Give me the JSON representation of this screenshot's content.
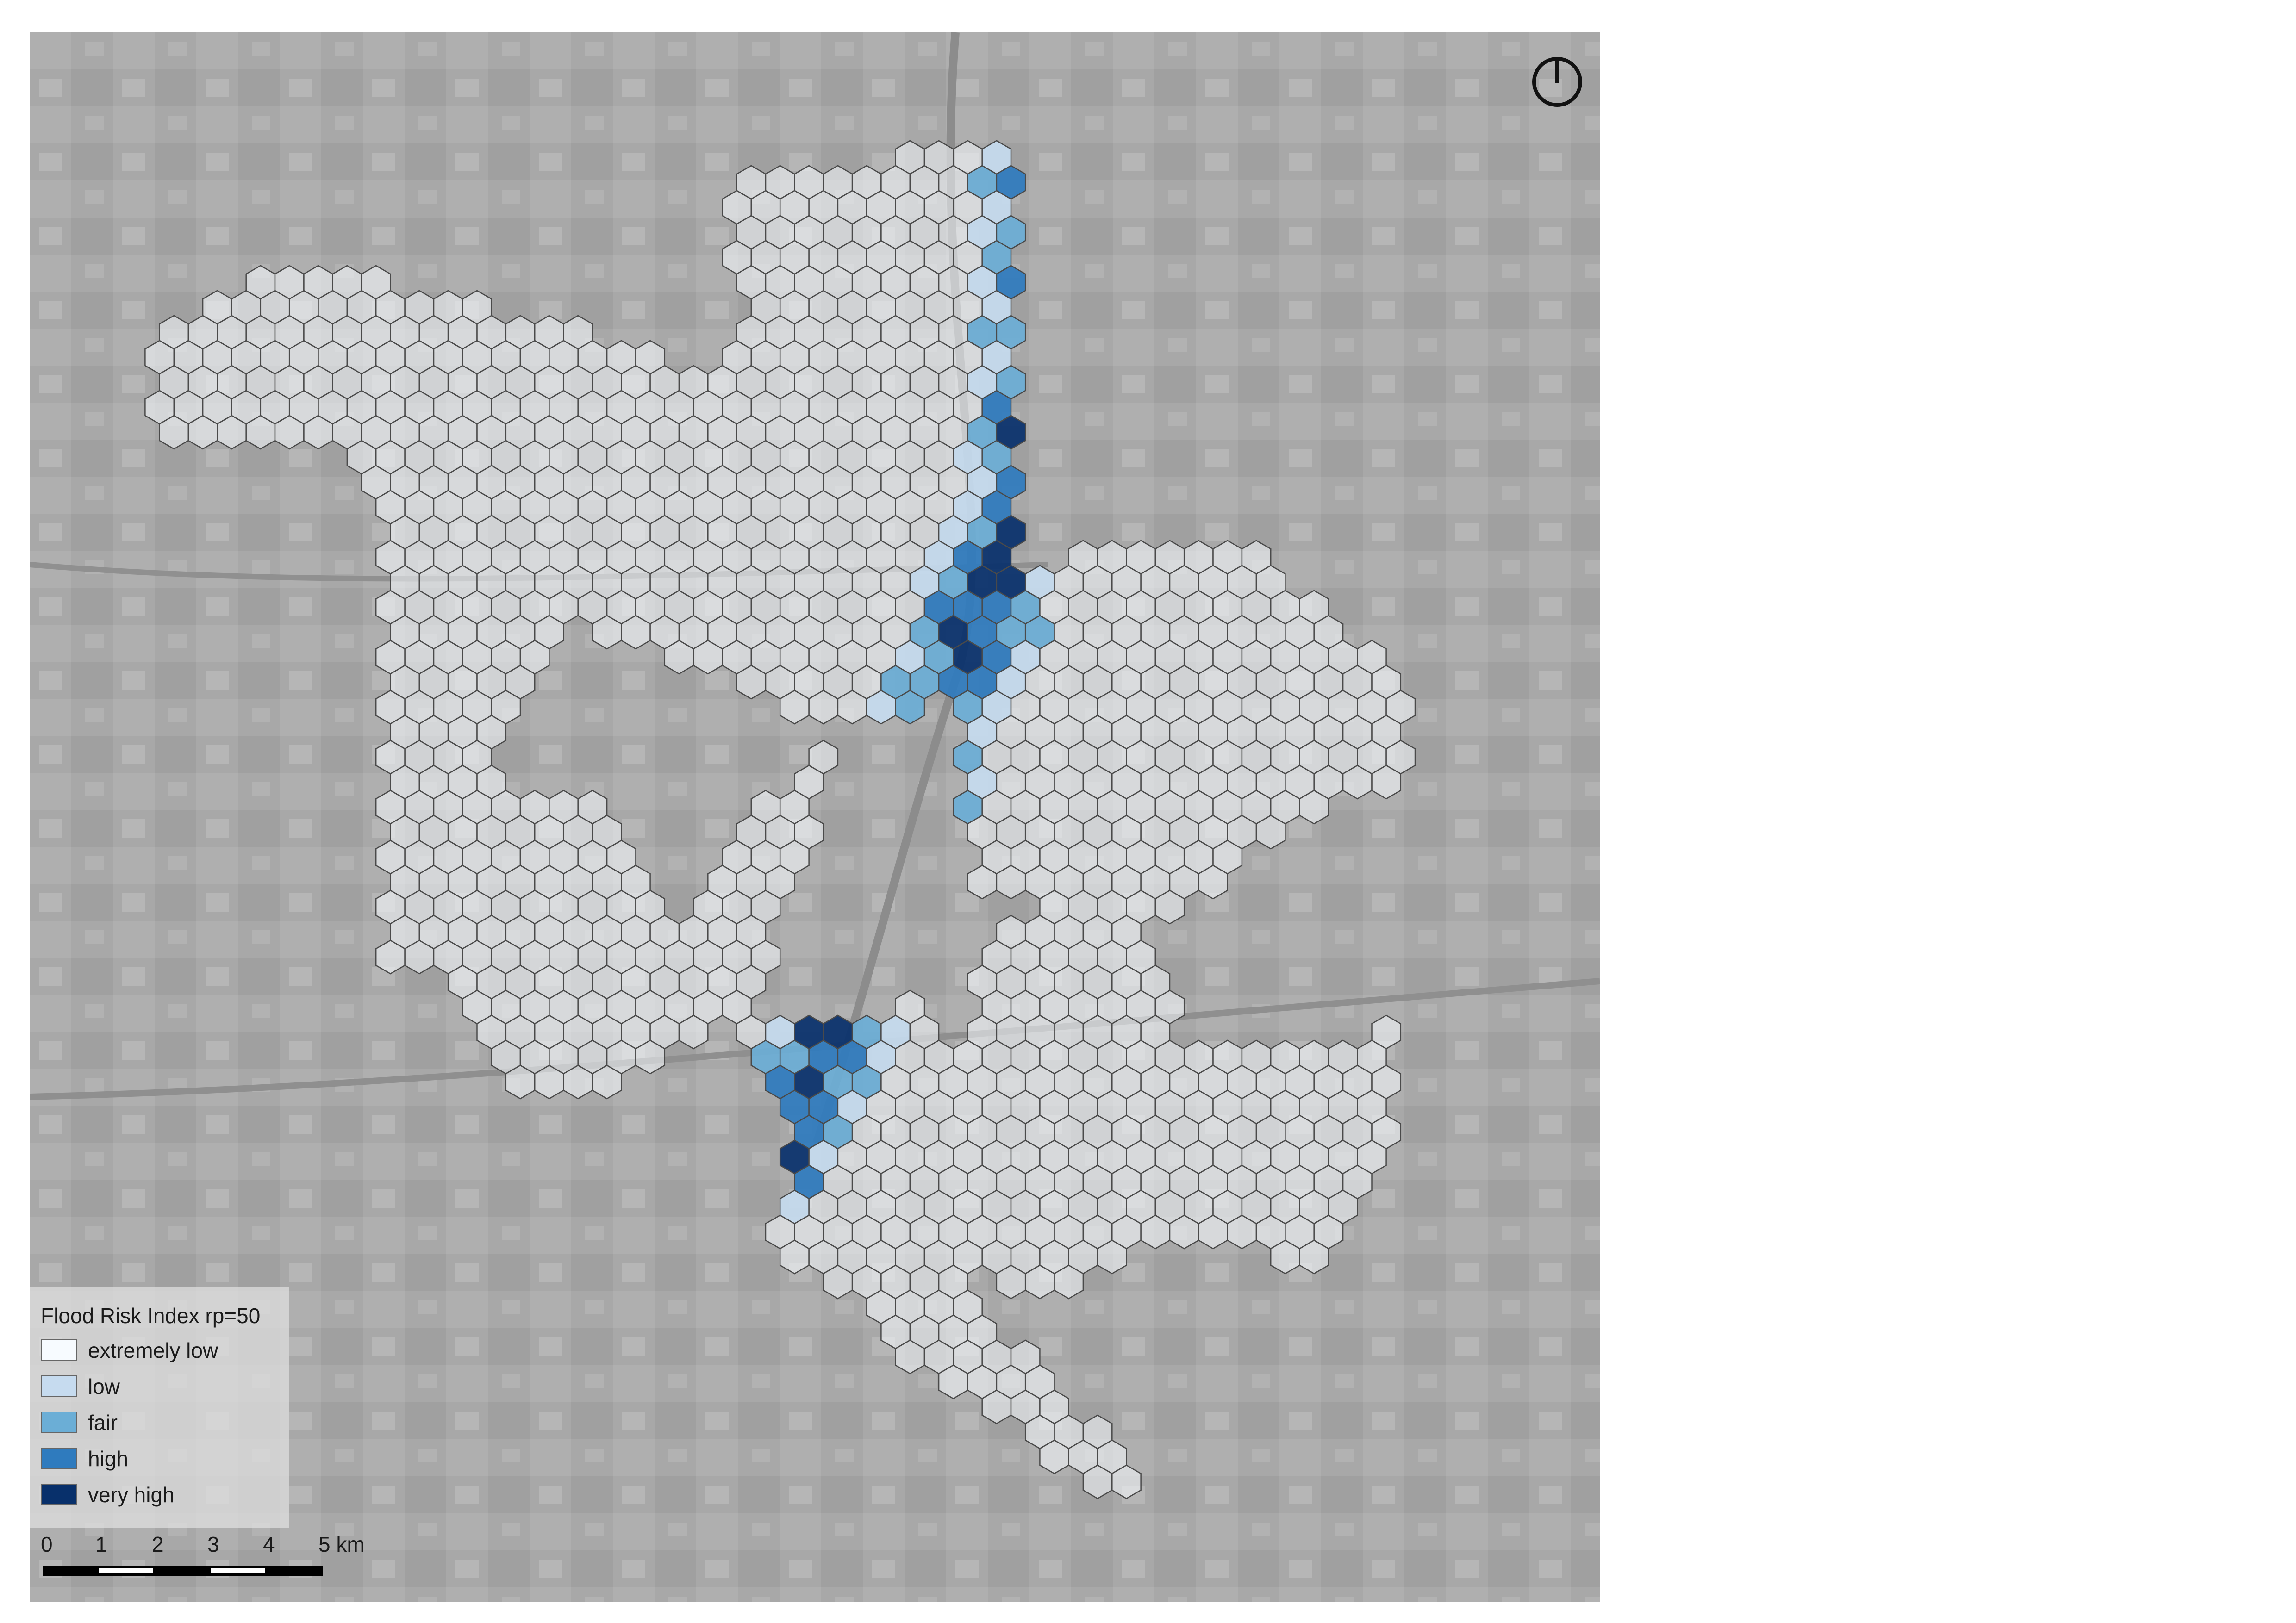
{
  "legend": {
    "title": "Flood Risk Index rp=50",
    "items": [
      {
        "label": "extremely low",
        "color": "#f7fbff"
      },
      {
        "label": "low",
        "color": "#c6dbef"
      },
      {
        "label": "fair",
        "color": "#6baed6"
      },
      {
        "label": "high",
        "color": "#2f7bbe"
      },
      {
        "label": "very high",
        "color": "#08306b"
      }
    ]
  },
  "scale_bar": {
    "ticks": [
      "0",
      "1",
      "2",
      "3",
      "4",
      "5 km"
    ]
  },
  "colors": {
    "hex_stroke": "#4a4a4a",
    "background": "#a9a9a9"
  },
  "icons": {
    "north_arrow": "north-arrow-icon"
  }
}
